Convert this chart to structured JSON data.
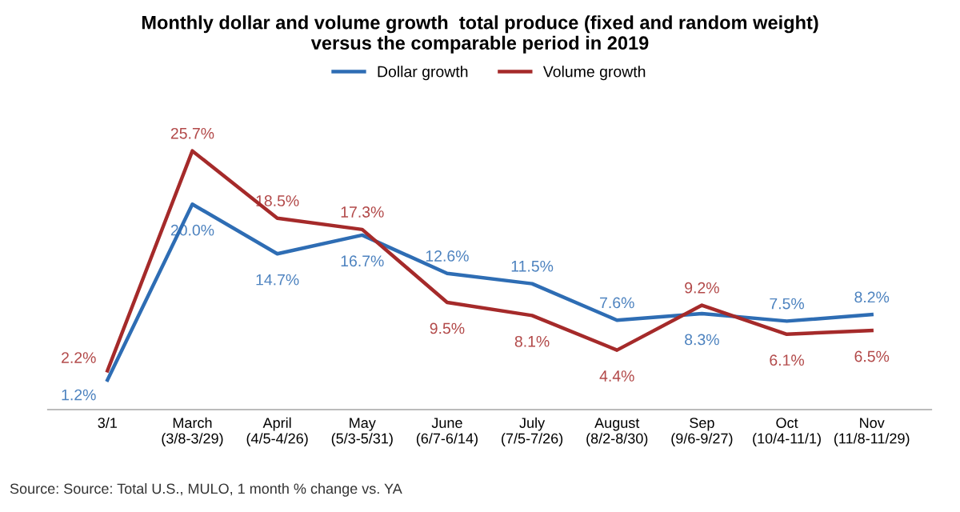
{
  "chart_data": {
    "type": "line",
    "title": "Monthly dollar and volume growth  total produce (fixed and random weight)\nversus the comparable period in 2019",
    "categories": [
      "3/1",
      "March (3/8-3/29)",
      "April (4/5-4/26)",
      "May (5/3-5/31)",
      "June (6/7-6/14)",
      "July (7/5-7/26)",
      "August (8/2-8/30)",
      "Sep (9/6-9/27)",
      "Oct (10/4-11/1)",
      "Nov (11/8-11/29)"
    ],
    "series": [
      {
        "name": "Dollar growth",
        "color": "#2e6db4",
        "values": [
          1.2,
          20.0,
          14.7,
          16.7,
          12.6,
          11.5,
          7.6,
          8.3,
          7.5,
          8.2
        ],
        "value_labels": [
          "1.2%",
          "20.0%",
          "14.7%",
          "16.7%",
          "12.6%",
          "11.5%",
          "7.6%",
          "8.3%",
          "7.5%",
          "8.2%"
        ]
      },
      {
        "name": "Volume growth",
        "color": "#a52a2a",
        "values": [
          2.2,
          25.7,
          18.5,
          17.3,
          9.5,
          8.1,
          4.4,
          9.2,
          6.1,
          6.5
        ],
        "value_labels": [
          "2.2%",
          "25.7%",
          "18.5%",
          "17.3%",
          "9.5%",
          "8.1%",
          "4.4%",
          "9.2%",
          "6.1%",
          "6.5%"
        ]
      }
    ],
    "legend": "top",
    "grid": false,
    "marker": "none",
    "line_style": "solid",
    "tick_labels": "x",
    "annotations": [
      "Source: Source: Total U.S., MULO, 1 month % change vs. YA"
    ]
  }
}
